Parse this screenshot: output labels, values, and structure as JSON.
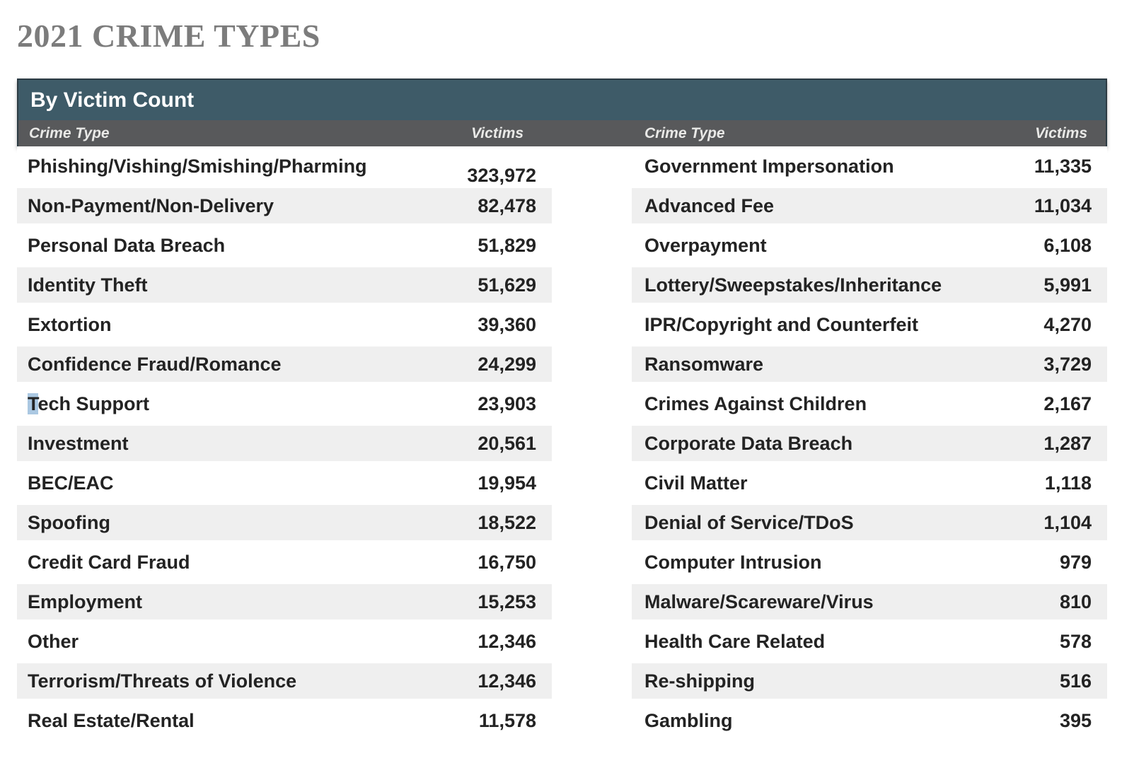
{
  "page_title": "2021 CRIME TYPES",
  "panel": {
    "header": "By Victim Count",
    "column_headers": {
      "left_type": "Crime Type",
      "left_victims": "Victims",
      "right_type": "Crime Type",
      "right_victims": "Victims"
    }
  },
  "chart_data": {
    "type": "table",
    "title": "2021 CRIME TYPES",
    "subtitle": "By Victim Count",
    "columns": [
      "Crime Type",
      "Victims"
    ],
    "rows_left": [
      [
        "Phishing/Vishing/Smishing/Pharming",
        "323,972"
      ],
      [
        "Non-Payment/Non-Delivery",
        "82,478"
      ],
      [
        "Personal Data Breach",
        "51,829"
      ],
      [
        "Identity Theft",
        "51,629"
      ],
      [
        "Extortion",
        "39,360"
      ],
      [
        "Confidence Fraud/Romance",
        "24,299"
      ],
      [
        "Tech Support",
        "23,903"
      ],
      [
        "Investment",
        "20,561"
      ],
      [
        "BEC/EAC",
        "19,954"
      ],
      [
        "Spoofing",
        "18,522"
      ],
      [
        "Credit Card Fraud",
        "16,750"
      ],
      [
        "Employment",
        "15,253"
      ],
      [
        "Other",
        "12,346"
      ],
      [
        "Terrorism/Threats of Violence",
        "12,346"
      ],
      [
        "Real Estate/Rental",
        "11,578"
      ]
    ],
    "rows_right": [
      [
        "Government Impersonation",
        "11,335"
      ],
      [
        "Advanced Fee",
        "11,034"
      ],
      [
        "Overpayment",
        "6,108"
      ],
      [
        "Lottery/Sweepstakes/Inheritance",
        "5,991"
      ],
      [
        "IPR/Copyright and Counterfeit",
        "4,270"
      ],
      [
        "Ransomware",
        "3,729"
      ],
      [
        "Crimes Against Children",
        "2,167"
      ],
      [
        "Corporate Data Breach",
        "1,287"
      ],
      [
        "Civil Matter",
        "1,118"
      ],
      [
        "Denial of Service/TDoS",
        "1,104"
      ],
      [
        "Computer Intrusion",
        "979"
      ],
      [
        "Malware/Scareware/Virus",
        "810"
      ],
      [
        "Health Care Related",
        "578"
      ],
      [
        "Re-shipping",
        "516"
      ],
      [
        "Gambling",
        "395"
      ]
    ]
  },
  "annotations": {
    "selected_text": "T",
    "selected_row_left_index": 6,
    "lowered_value_row_left_index": 0
  },
  "colors": {
    "panel_header_bg": "#3e5b68",
    "panel_header_border": "#2c3b43",
    "columns_bar_bg": "#58595b",
    "row_shade": "#efefef",
    "row_text": "#232323",
    "title_text": "#7c7c7c",
    "selection_highlight": "#abc8e2"
  }
}
